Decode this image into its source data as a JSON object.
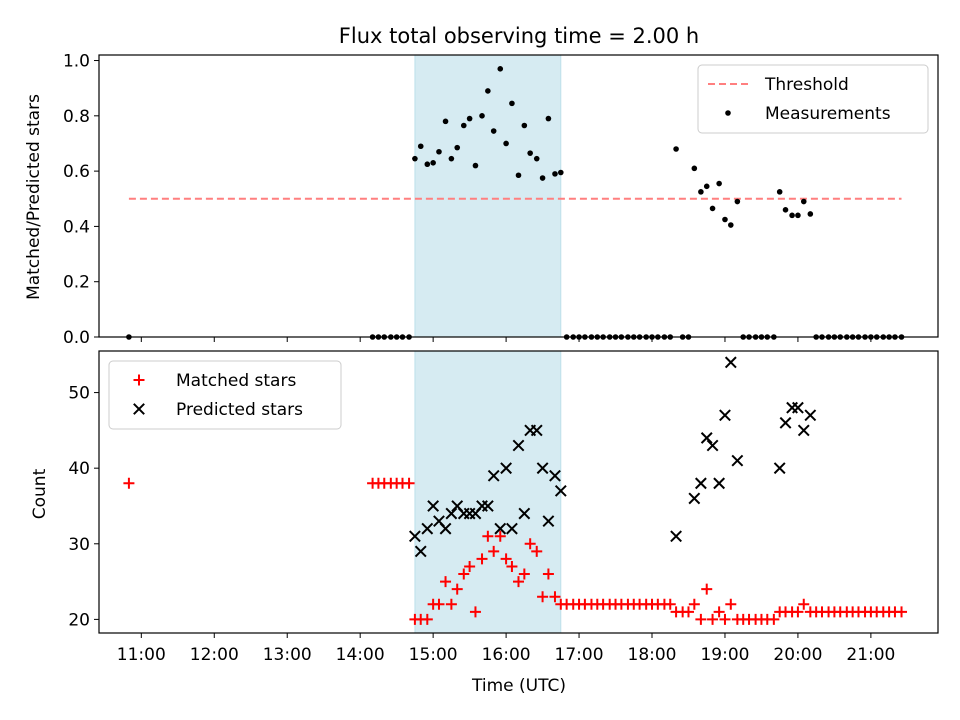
{
  "chart_data": [
    {
      "type": "scatter",
      "title": "Flux total observing time = 2.00 h",
      "xlabel": "",
      "ylabel": "Matched/Predicted stars",
      "xlim": [
        10.42,
        21.92
      ],
      "ylim": [
        0,
        1.02
      ],
      "yticks": [
        0.0,
        0.2,
        0.4,
        0.6,
        0.8,
        1.0
      ],
      "ytick_labels": [
        "0.0",
        "0.2",
        "0.4",
        "0.6",
        "0.8",
        "1.0"
      ],
      "shaded_span": [
        14.75,
        16.75
      ],
      "legend_position": "top-right",
      "legend": [
        "Threshold",
        "Measurements"
      ],
      "threshold": {
        "name": "Threshold",
        "value": 0.5,
        "x_range": [
          10.83,
          21.42
        ],
        "color": "#ff7f7f"
      },
      "series": [
        {
          "name": "Measurements",
          "marker": "dot",
          "color": "#000000",
          "x": [
            10.83,
            14.17,
            14.25,
            14.33,
            14.42,
            14.5,
            14.58,
            14.67,
            14.75,
            14.83,
            14.92,
            15.0,
            15.08,
            15.17,
            15.25,
            15.33,
            15.42,
            15.5,
            15.58,
            15.67,
            15.75,
            15.83,
            15.92,
            16.0,
            16.08,
            16.17,
            16.25,
            16.33,
            16.42,
            16.5,
            16.58,
            16.67,
            16.75,
            16.83,
            16.92,
            17.0,
            17.08,
            17.17,
            17.25,
            17.33,
            17.42,
            17.5,
            17.58,
            17.67,
            17.75,
            17.83,
            17.92,
            18.0,
            18.08,
            18.17,
            18.25,
            18.33,
            18.42,
            18.5,
            18.58,
            18.67,
            18.75,
            18.83,
            18.92,
            19.0,
            19.08,
            19.17,
            19.25,
            19.33,
            19.42,
            19.5,
            19.58,
            19.67,
            19.75,
            19.83,
            19.92,
            20.0,
            20.08,
            20.17,
            20.25,
            20.33,
            20.42,
            20.5,
            20.58,
            20.67,
            20.75,
            20.83,
            20.92,
            21.0,
            21.08,
            21.17,
            21.25,
            21.33,
            21.42
          ],
          "y": [
            0.0,
            0.0,
            0.0,
            0.0,
            0.0,
            0.0,
            0.0,
            0.0,
            0.645,
            0.69,
            0.625,
            0.63,
            0.67,
            0.78,
            0.645,
            0.685,
            0.765,
            0.79,
            0.62,
            0.8,
            0.89,
            0.745,
            0.97,
            0.7,
            0.845,
            0.585,
            0.765,
            0.665,
            0.645,
            0.575,
            0.79,
            0.59,
            0.595,
            0.0,
            0.0,
            0.0,
            0.0,
            0.0,
            0.0,
            0.0,
            0.0,
            0.0,
            0.0,
            0.0,
            0.0,
            0.0,
            0.0,
            0.0,
            0.0,
            0.0,
            0.0,
            0.68,
            0.0,
            0.0,
            0.61,
            0.525,
            0.545,
            0.465,
            0.555,
            0.425,
            0.405,
            0.49,
            0.0,
            0.0,
            0.0,
            0.0,
            0.0,
            0.0,
            0.525,
            0.46,
            0.44,
            0.44,
            0.49,
            0.445,
            0.0,
            0.0,
            0.0,
            0.0,
            0.0,
            0.0,
            0.0,
            0.0,
            0.0,
            0.0,
            0.0,
            0.0,
            0.0,
            0.0,
            0.0
          ]
        }
      ]
    },
    {
      "type": "scatter",
      "title": "",
      "xlabel": "Time (UTC)",
      "ylabel": "Count",
      "xlim": [
        10.42,
        21.92
      ],
      "ylim": [
        18.2,
        55.5
      ],
      "yticks": [
        20,
        30,
        40,
        50
      ],
      "ytick_labels": [
        "20",
        "30",
        "40",
        "50"
      ],
      "xticks": [
        11,
        12,
        13,
        14,
        15,
        16,
        17,
        18,
        19,
        20,
        21
      ],
      "xtick_labels": [
        "11:00",
        "12:00",
        "13:00",
        "14:00",
        "15:00",
        "16:00",
        "17:00",
        "18:00",
        "19:00",
        "20:00",
        "21:00"
      ],
      "shaded_span": [
        14.75,
        16.75
      ],
      "legend_position": "top-left",
      "legend": [
        "Matched stars",
        "Predicted stars"
      ],
      "series": [
        {
          "name": "Matched stars",
          "marker": "plus",
          "color": "#ff0000",
          "x": [
            10.83,
            14.17,
            14.25,
            14.33,
            14.42,
            14.5,
            14.58,
            14.67,
            14.75,
            14.83,
            14.92,
            15.0,
            15.08,
            15.17,
            15.25,
            15.33,
            15.42,
            15.5,
            15.58,
            15.67,
            15.75,
            15.83,
            15.92,
            16.0,
            16.08,
            16.17,
            16.25,
            16.33,
            16.42,
            16.5,
            16.58,
            16.67,
            16.75,
            16.83,
            16.92,
            17.0,
            17.08,
            17.17,
            17.25,
            17.33,
            17.42,
            17.5,
            17.58,
            17.67,
            17.75,
            17.83,
            17.92,
            18.0,
            18.08,
            18.17,
            18.25,
            18.33,
            18.42,
            18.5,
            18.58,
            18.67,
            18.75,
            18.83,
            18.92,
            19.0,
            19.08,
            19.17,
            19.25,
            19.33,
            19.42,
            19.5,
            19.58,
            19.67,
            19.75,
            19.83,
            19.92,
            20.0,
            20.08,
            20.17,
            20.25,
            20.33,
            20.42,
            20.5,
            20.58,
            20.67,
            20.75,
            20.83,
            20.92,
            21.0,
            21.08,
            21.17,
            21.25,
            21.33,
            21.42
          ],
          "y": [
            38,
            38,
            38,
            38,
            38,
            38,
            38,
            38,
            20,
            20,
            20,
            22,
            22,
            25,
            22,
            24,
            26,
            27,
            21,
            28,
            31,
            29,
            31,
            28,
            27,
            25,
            26,
            30,
            29,
            23,
            26,
            23,
            22,
            22,
            22,
            22,
            22,
            22,
            22,
            22,
            22,
            22,
            22,
            22,
            22,
            22,
            22,
            22,
            22,
            22,
            22,
            21,
            21,
            21,
            22,
            20,
            24,
            20,
            21,
            20,
            22,
            20,
            20,
            20,
            20,
            20,
            20,
            20,
            21,
            21,
            21,
            21,
            22,
            21,
            21,
            21,
            21,
            21,
            21,
            21,
            21,
            21,
            21,
            21,
            21,
            21,
            21,
            21,
            21
          ]
        },
        {
          "name": "Predicted stars",
          "marker": "x",
          "color": "#000000",
          "x": [
            14.75,
            14.83,
            14.92,
            15.0,
            15.08,
            15.17,
            15.25,
            15.33,
            15.42,
            15.5,
            15.58,
            15.67,
            15.75,
            15.83,
            15.92,
            16.0,
            16.08,
            16.17,
            16.25,
            16.33,
            16.42,
            16.5,
            16.58,
            16.67,
            16.75,
            18.33,
            18.58,
            18.67,
            18.75,
            18.83,
            18.92,
            19.0,
            19.08,
            19.17,
            19.75,
            19.83,
            19.92,
            20.0,
            20.08,
            20.17
          ],
          "y": [
            31,
            29,
            32,
            35,
            33,
            32,
            34,
            35,
            34,
            34,
            34,
            35,
            35,
            39,
            32,
            40,
            32,
            43,
            34,
            45,
            45,
            40,
            33,
            39,
            37,
            31,
            36,
            38,
            44,
            43,
            38,
            47,
            54,
            41,
            40,
            46,
            48,
            48,
            45,
            47
          ]
        }
      ]
    }
  ]
}
